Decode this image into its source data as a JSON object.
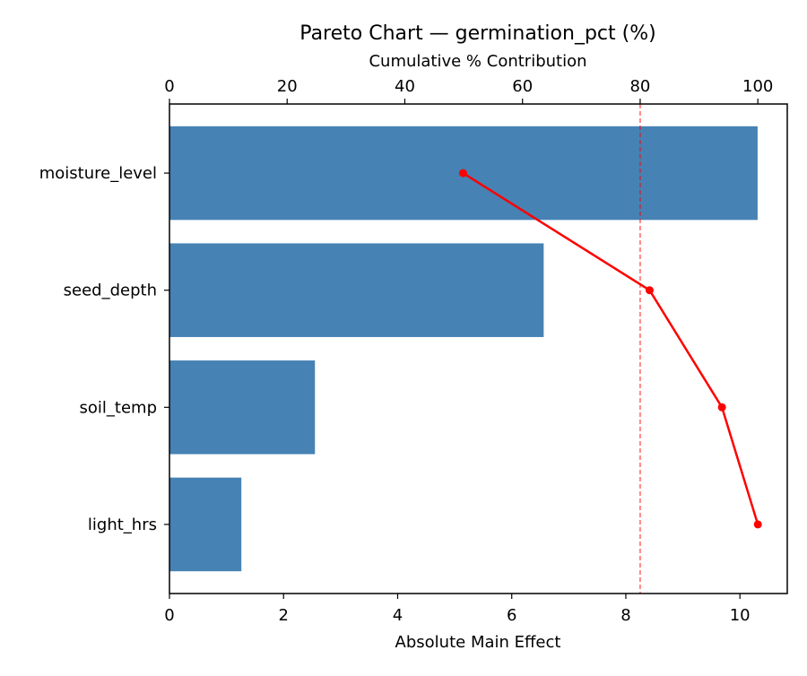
{
  "chart_data": {
    "type": "bar",
    "orientation": "horizontal",
    "title": "Pareto Chart — germination_pct (%)",
    "xlabel": "Absolute Main Effect",
    "x2label": "Cumulative % Contribution",
    "ylabel": "",
    "categories": [
      "moisture_level",
      "seed_depth",
      "soil_temp",
      "light_hrs"
    ],
    "values": [
      10.31,
      6.56,
      2.55,
      1.26
    ],
    "cumulative_pct": [
      49.9,
      81.6,
      93.9,
      100.0
    ],
    "threshold_pct": 80,
    "xlim": [
      0,
      10.83
    ],
    "x2lim": [
      0,
      105
    ],
    "xticks": [
      "0",
      "2",
      "4",
      "6",
      "8",
      "10"
    ],
    "x2ticks": [
      "0",
      "20",
      "40",
      "60",
      "80",
      "100"
    ],
    "grid": false,
    "colors": {
      "bar": "#4682b4",
      "cumulative": "#ff0000",
      "threshold": "#ff0000"
    }
  }
}
